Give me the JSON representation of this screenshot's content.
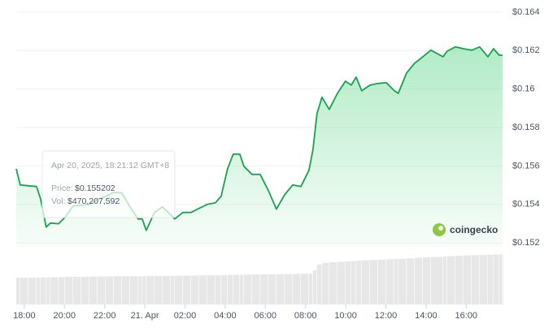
{
  "chart_data": {
    "type": "line",
    "x": [
      -0.4,
      -0.2,
      0.2,
      0.61,
      0.81,
      1.09,
      1.3,
      1.7,
      2.02,
      2.43,
      2.83,
      3.24,
      3.64,
      4.05,
      4.45,
      4.86,
      5.26,
      5.67,
      5.87,
      6.07,
      6.48,
      6.88,
      7.29,
      7.49,
      7.89,
      8.3,
      8.7,
      9.11,
      9.51,
      9.8,
      10.12,
      10.4,
      10.73,
      10.93,
      11.34,
      11.74,
      12.15,
      12.55,
      12.96,
      13.36,
      13.77,
      14.17,
      14.37,
      14.57,
      14.82,
      15.18,
      15.59,
      15.99,
      16.28,
      16.52,
      16.8,
      17.21,
      17.61,
      18.02,
      18.42,
      18.62,
      19.03,
      19.43,
      19.84,
      20.24,
      20.85,
      21.05,
      21.46,
      21.86,
      22.27,
      22.67,
      23.08,
      23.36,
      23.64,
      23.81
    ],
    "series": [
      {
        "color": "#16a34a",
        "values": [
          0.15585,
          0.15501,
          0.15497,
          0.15493,
          0.15429,
          0.15282,
          0.15303,
          0.15299,
          0.15332,
          0.15391,
          0.15396,
          0.154,
          0.15425,
          0.15442,
          0.15463,
          0.15459,
          0.15387,
          0.15324,
          0.15324,
          0.15265,
          0.15358,
          0.15387,
          0.15345,
          0.15324,
          0.15358,
          0.15358,
          0.15379,
          0.154,
          0.15408,
          0.15442,
          0.15585,
          0.15661,
          0.15661,
          0.15598,
          0.15556,
          0.15556,
          0.15472,
          0.15375,
          0.1545,
          0.15501,
          0.15493,
          0.15577,
          0.15683,
          0.15872,
          0.15957,
          0.15894,
          0.15978,
          0.16041,
          0.1602,
          0.16062,
          0.15991,
          0.1602,
          0.16029,
          0.16033,
          0.15991,
          0.15978,
          0.16083,
          0.16134,
          0.16168,
          0.16202,
          0.16168,
          0.16197,
          0.16219,
          0.1621,
          0.16202,
          0.16219,
          0.16168,
          0.1621,
          0.16176,
          0.16176
        ]
      },
      {
        "axis": "y2",
        "type": "bar",
        "color": "#e7e7e7",
        "values": [
          470000000,
          468000000,
          470000000,
          472000000,
          474000000,
          476000000,
          478000000,
          480000000,
          482000000,
          484000000,
          486000000,
          488000000,
          490000000,
          492000000,
          493000000,
          494000000,
          495000000,
          496000000,
          497000000,
          498000000,
          499000000,
          500000000,
          501000000,
          502000000,
          505000000,
          508000000,
          510000000,
          512000000,
          514000000,
          516000000,
          518000000,
          520000000,
          522000000,
          524000000,
          526000000,
          528000000,
          530000000,
          532000000,
          534000000,
          536000000,
          538000000,
          540000000,
          600000000,
          700000000,
          730000000,
          740000000,
          748000000,
          755000000,
          762000000,
          768000000,
          774000000,
          780000000,
          786000000,
          792000000,
          798000000,
          800000000,
          810000000,
          818000000,
          826000000,
          834000000,
          842000000,
          848000000,
          854000000,
          860000000,
          864000000,
          868000000,
          872000000,
          876000000,
          880000000,
          882000000
        ]
      }
    ],
    "xlim": [
      -0.4,
      23.81
    ],
    "xticks": [
      {
        "value": 0,
        "label": "18:00"
      },
      {
        "value": 2,
        "label": "20:00"
      },
      {
        "value": 4,
        "label": "22:00"
      },
      {
        "value": 6,
        "label": "21. Apr"
      },
      {
        "value": 8,
        "label": "02:00"
      },
      {
        "value": 10,
        "label": "04:00"
      },
      {
        "value": 12,
        "label": "06:00"
      },
      {
        "value": 14,
        "label": "08:00"
      },
      {
        "value": 16,
        "label": "10:00"
      },
      {
        "value": 18,
        "label": "12:00"
      },
      {
        "value": 20,
        "label": "14:00"
      },
      {
        "value": 22,
        "label": "16:00"
      }
    ],
    "ylim": [
      0.1518,
      0.1644
    ],
    "yticks": [
      {
        "value": 0.152,
        "label": "$0.152"
      },
      {
        "value": 0.154,
        "label": "$0.154"
      },
      {
        "value": 0.156,
        "label": "$0.156"
      },
      {
        "value": 0.158,
        "label": "$0.158"
      },
      {
        "value": 0.16,
        "label": "$0.16"
      },
      {
        "value": 0.162,
        "label": "$0.162"
      },
      {
        "value": 0.164,
        "label": "$0.164"
      }
    ],
    "y2lim": [
      0,
      940000000
    ],
    "grid": true,
    "tooltip": {
      "date": "Apr 20, 2025, 18:21:12 GMT+8",
      "price_label": "Price:",
      "price": "$0.155202",
      "volume_label": "Vol:",
      "volume": "$470,207,592"
    },
    "watermark": "coingecko"
  }
}
